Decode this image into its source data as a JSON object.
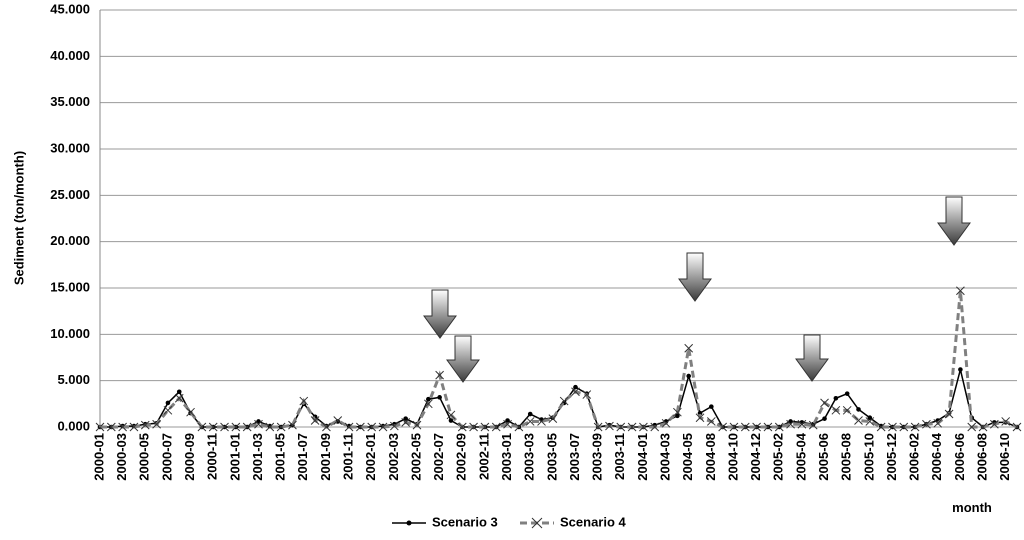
{
  "chart_data": {
    "type": "line",
    "y_label": "Sediment (ton/month)",
    "x_label": "month",
    "categories": [
      "2000-01",
      null,
      "2000-03",
      null,
      "2000-05",
      null,
      "2000-07",
      null,
      "2000-09",
      null,
      "2000-11",
      null,
      "2001-01",
      null,
      "2001-03",
      null,
      "2001-05",
      null,
      "2001-07",
      null,
      "2001-09",
      null,
      "2001-11",
      null,
      "2002-01",
      null,
      "2002-03",
      null,
      "2002-05",
      null,
      "2002-07",
      null,
      "2002-09",
      null,
      "2002-11",
      null,
      "2003-01",
      null,
      "2003-03",
      null,
      "2003-05",
      null,
      "2003-07",
      null,
      "2003-09",
      null,
      "2003-11",
      null,
      "2004-01",
      null,
      "2004-03",
      null,
      "2004-05",
      null,
      "2004-08",
      null,
      "2004-10",
      null,
      "2004-12",
      null,
      "2005-02",
      null,
      "2005-04",
      null,
      "2005-06",
      null,
      "2005-08",
      null,
      "2005-10",
      null,
      "2005-12",
      null,
      "2006-02",
      null,
      "2006-04",
      null,
      "2006-06",
      null,
      "2006-08",
      null,
      "2006-10",
      null
    ],
    "series": [
      {
        "name": "Scenario 3",
        "color": "#000000",
        "values": [
          0,
          0,
          100,
          100,
          300,
          400,
          2600,
          3800,
          1500,
          0,
          0,
          0,
          0,
          0,
          600,
          100,
          0,
          200,
          2500,
          1100,
          100,
          600,
          100,
          0,
          0,
          100,
          300,
          900,
          300,
          3000,
          3200,
          700,
          0,
          0,
          0,
          0,
          700,
          0,
          1400,
          800,
          1000,
          2600,
          4300,
          3600,
          0,
          200,
          0,
          0,
          0,
          200,
          600,
          1200,
          5500,
          1500,
          2200,
          0,
          0,
          0,
          0,
          0,
          0,
          600,
          500,
          300,
          900,
          3100,
          3600,
          1900,
          1000,
          100,
          0,
          0,
          0,
          300,
          700,
          1500,
          6200,
          1000,
          0,
          500,
          500,
          0
        ]
      },
      {
        "name": "Scenario 4",
        "color": "#808080",
        "values": [
          0,
          0,
          0,
          0,
          200,
          300,
          1800,
          3100,
          1600,
          0,
          0,
          0,
          0,
          0,
          300,
          0,
          0,
          200,
          2800,
          700,
          0,
          700,
          0,
          0,
          0,
          0,
          100,
          500,
          200,
          2500,
          5600,
          1300,
          0,
          0,
          0,
          0,
          300,
          0,
          600,
          600,
          900,
          2800,
          3800,
          3500,
          0,
          100,
          0,
          0,
          0,
          0,
          400,
          1600,
          8500,
          1000,
          600,
          0,
          0,
          0,
          0,
          0,
          0,
          300,
          300,
          200,
          2600,
          1800,
          1800,
          700,
          600,
          0,
          0,
          0,
          0,
          300,
          400,
          1400,
          14700,
          0,
          0,
          300,
          600,
          0
        ]
      }
    ],
    "ylim": [
      0,
      45000
    ],
    "yticks": [
      {
        "value": 0,
        "label": "0.000"
      },
      {
        "value": 5000,
        "label": "5.000"
      },
      {
        "value": 10000,
        "label": "10.000"
      },
      {
        "value": 15000,
        "label": "15.000"
      },
      {
        "value": 20000,
        "label": "20.000"
      },
      {
        "value": 25000,
        "label": "25.000"
      },
      {
        "value": 30000,
        "label": "30.000"
      },
      {
        "value": 35000,
        "label": "35.000"
      },
      {
        "value": 40000,
        "label": "40.000"
      },
      {
        "value": 45000,
        "label": "45.000"
      }
    ],
    "grid": true
  }
}
